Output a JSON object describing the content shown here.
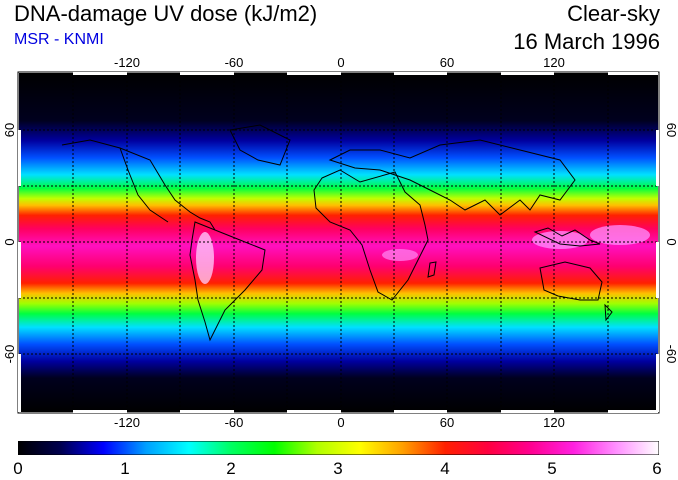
{
  "header": {
    "title": "DNA-damage UV dose (kJ/m2)",
    "subtitle": "MSR - KNMI",
    "condition": "Clear-sky",
    "date": "16 March 1996"
  },
  "map": {
    "lon_ticks": [
      "-120",
      "-60",
      "0",
      "60",
      "120"
    ],
    "lat_ticks": [
      "60",
      "0",
      "-60"
    ]
  },
  "colorbar": {
    "labels": [
      "0",
      "1",
      "2",
      "3",
      "4",
      "5",
      "6"
    ],
    "colors": [
      "#000000",
      "#00004f",
      "#0000ff",
      "#00a0ff",
      "#00ffff",
      "#00ff60",
      "#00ff00",
      "#b0ff00",
      "#ffff00",
      "#ffa000",
      "#ff2000",
      "#ff0040",
      "#ff0090",
      "#ff20e0",
      "#ff90ff",
      "#ffffff"
    ]
  }
}
